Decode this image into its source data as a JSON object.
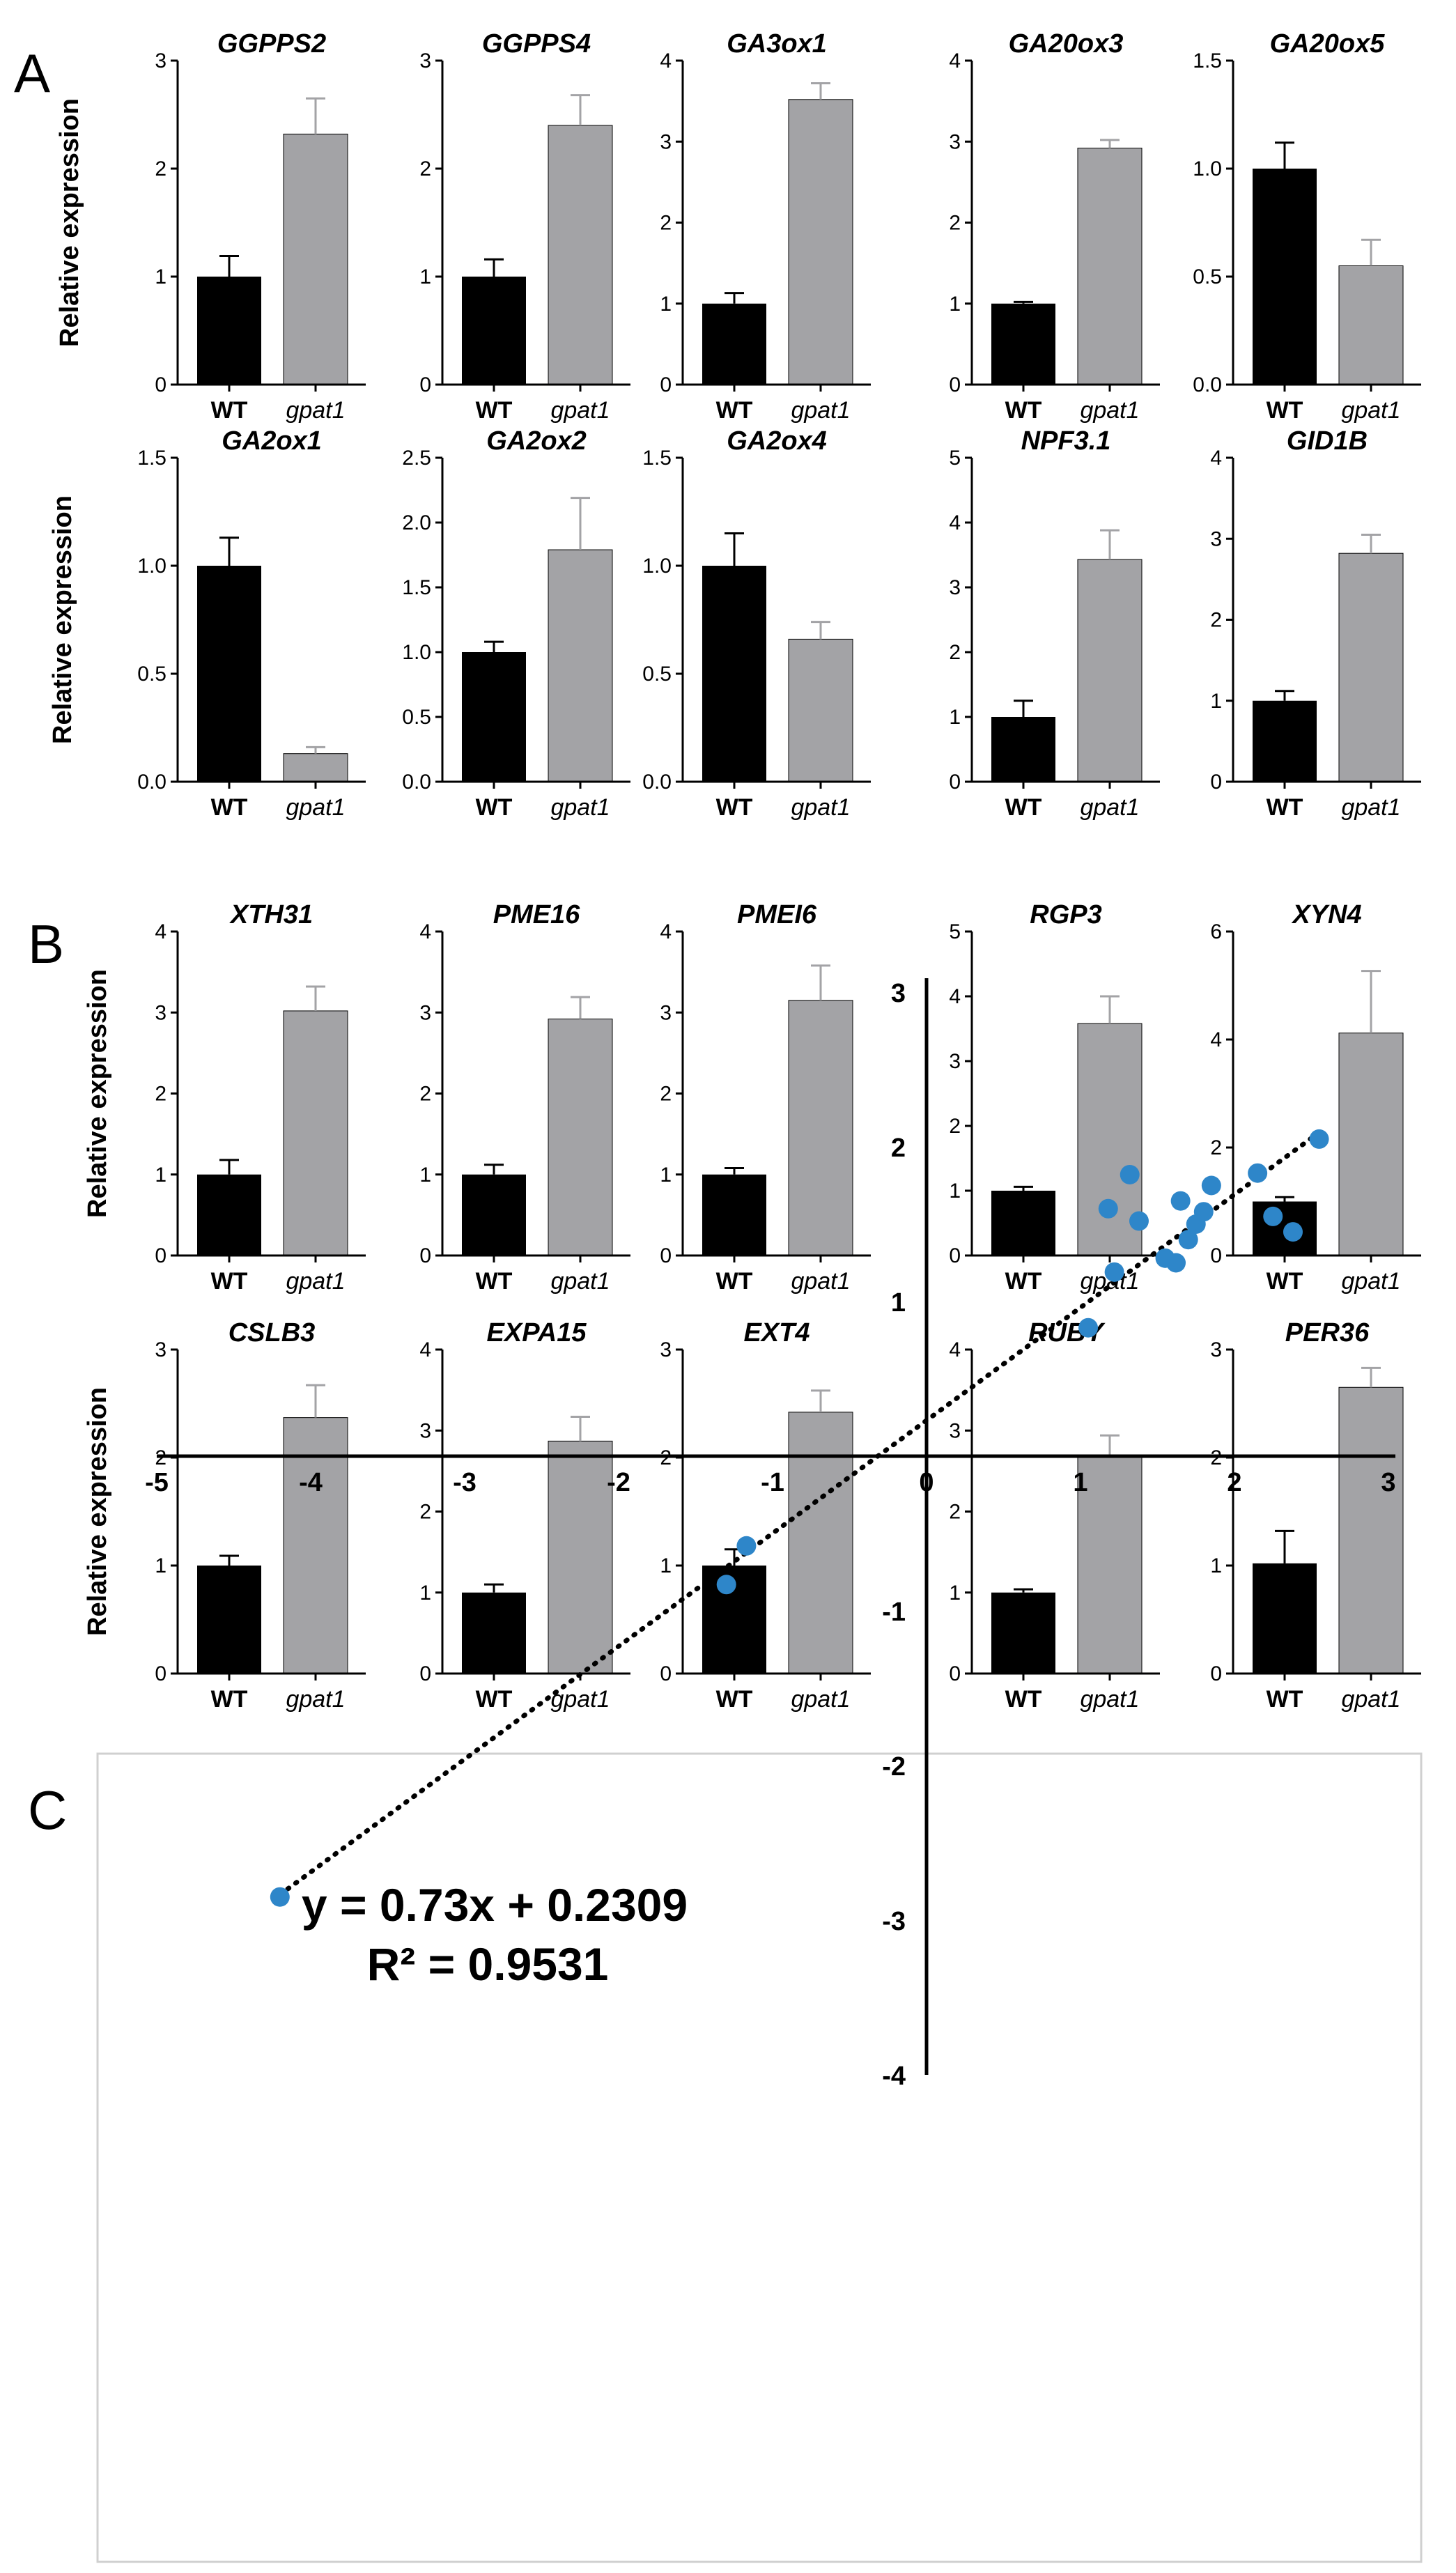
{
  "panels": {
    "a": {
      "letter": "A"
    },
    "b": {
      "letter": "B"
    },
    "c": {
      "letter": "C"
    }
  },
  "chart_data": [
    {
      "panel": "A",
      "type": "bar",
      "ylabel": "Relative expression",
      "categories": [
        "WT",
        "gpat1"
      ],
      "charts": [
        {
          "title": "GGPPS2",
          "values": [
            1.0,
            2.32
          ],
          "errors": [
            0.19,
            0.33
          ],
          "ylim": [
            0,
            3
          ],
          "yticks": [
            "0",
            "1",
            "2",
            "3"
          ]
        },
        {
          "title": "GGPPS4",
          "values": [
            1.0,
            2.4
          ],
          "errors": [
            0.16,
            0.28
          ],
          "ylim": [
            0,
            3
          ],
          "yticks": [
            "0",
            "1",
            "2",
            "3"
          ]
        },
        {
          "title": "GA3ox1",
          "values": [
            1.0,
            3.52
          ],
          "errors": [
            0.13,
            0.2
          ],
          "ylim": [
            0,
            4
          ],
          "yticks": [
            "0",
            "1",
            "2",
            "3",
            "4"
          ]
        },
        {
          "title": "GA20ox3",
          "values": [
            1.0,
            2.92
          ],
          "errors": [
            0.02,
            0.1
          ],
          "ylim": [
            0,
            4
          ],
          "yticks": [
            "0",
            "1",
            "2",
            "3",
            "4"
          ]
        },
        {
          "title": "GA20ox5",
          "values": [
            1.0,
            0.55
          ],
          "errors": [
            0.12,
            0.12
          ],
          "ylim": [
            0,
            1.5
          ],
          "yticks": [
            "0.0",
            "0.5",
            "1.0",
            "1.5"
          ]
        },
        {
          "title": "GA2ox1",
          "values": [
            1.0,
            0.13
          ],
          "errors": [
            0.13,
            0.03
          ],
          "ylim": [
            0,
            1.5
          ],
          "yticks": [
            "0.0",
            "0.5",
            "1.0",
            "1.5"
          ]
        },
        {
          "title": "GA2ox2",
          "values": [
            1.0,
            1.79
          ],
          "errors": [
            0.08,
            0.4
          ],
          "ylim": [
            0,
            2.5
          ],
          "yticks": [
            "0.0",
            "0.5",
            "1.0",
            "1.5",
            "2.0",
            "2.5"
          ]
        },
        {
          "title": "GA2ox4",
          "values": [
            1.0,
            0.66
          ],
          "errors": [
            0.15,
            0.08
          ],
          "ylim": [
            0,
            1.5
          ],
          "yticks": [
            "0.0",
            "0.5",
            "1.0",
            "1.5"
          ]
        },
        {
          "title": "NPF3.1",
          "values": [
            1.0,
            3.43
          ],
          "errors": [
            0.25,
            0.45
          ],
          "ylim": [
            0,
            5
          ],
          "yticks": [
            "0",
            "1",
            "2",
            "3",
            "4",
            "5"
          ]
        },
        {
          "title": "GID1B",
          "values": [
            1.0,
            2.82
          ],
          "errors": [
            0.12,
            0.23
          ],
          "ylim": [
            0,
            4
          ],
          "yticks": [
            "0",
            "1",
            "2",
            "3",
            "4"
          ]
        }
      ]
    },
    {
      "panel": "B",
      "type": "bar",
      "ylabel": "Relative expression",
      "categories": [
        "WT",
        "gpat1"
      ],
      "charts": [
        {
          "title": "XTH31",
          "values": [
            1.0,
            3.02
          ],
          "errors": [
            0.18,
            0.3
          ],
          "ylim": [
            0,
            4
          ],
          "yticks": [
            "0",
            "1",
            "2",
            "3",
            "4"
          ]
        },
        {
          "title": "PME16",
          "values": [
            1.0,
            2.92
          ],
          "errors": [
            0.12,
            0.27
          ],
          "ylim": [
            0,
            4
          ],
          "yticks": [
            "0",
            "1",
            "2",
            "3",
            "4"
          ]
        },
        {
          "title": "PMEI6",
          "values": [
            1.0,
            3.15
          ],
          "errors": [
            0.08,
            0.43
          ],
          "ylim": [
            0,
            4
          ],
          "yticks": [
            "0",
            "1",
            "2",
            "3",
            "4"
          ]
        },
        {
          "title": "RGP3",
          "values": [
            1.0,
            3.58
          ],
          "errors": [
            0.06,
            0.42
          ],
          "ylim": [
            0,
            5
          ],
          "yticks": [
            "0",
            "1",
            "2",
            "3",
            "4",
            "5"
          ]
        },
        {
          "title": "XYN4",
          "values": [
            1.0,
            4.12
          ],
          "errors": [
            0.08,
            1.15
          ],
          "ylim": [
            0,
            6
          ],
          "yticks": [
            "0",
            "2",
            "4",
            "6"
          ]
        },
        {
          "title": "CSLB3",
          "values": [
            1.0,
            2.37
          ],
          "errors": [
            0.09,
            0.3
          ],
          "ylim": [
            0,
            3
          ],
          "yticks": [
            "0",
            "1",
            "2",
            "3"
          ]
        },
        {
          "title": "EXPA15",
          "values": [
            1.0,
            2.87
          ],
          "errors": [
            0.1,
            0.3
          ],
          "ylim": [
            0,
            4
          ],
          "yticks": [
            "0",
            "1",
            "2",
            "3",
            "4"
          ]
        },
        {
          "title": "EXT4",
          "values": [
            1.0,
            2.42
          ],
          "errors": [
            0.15,
            0.2
          ],
          "ylim": [
            0,
            3
          ],
          "yticks": [
            "0",
            "1",
            "2",
            "3"
          ]
        },
        {
          "title": "RUBY",
          "values": [
            1.0,
            2.7
          ],
          "errors": [
            0.04,
            0.24
          ],
          "ylim": [
            0,
            4
          ],
          "yticks": [
            "0",
            "1",
            "2",
            "3",
            "4"
          ]
        },
        {
          "title": "PER36",
          "values": [
            1.02,
            2.65
          ],
          "errors": [
            0.3,
            0.18
          ],
          "ylim": [
            0,
            3
          ],
          "yticks": [
            "0",
            "1",
            "2",
            "3"
          ]
        }
      ]
    },
    {
      "panel": "C",
      "type": "scatter",
      "equation": "y = 0.73x + 0.2309",
      "r_squared": "R² = 0.9531",
      "xlim": [
        -5,
        3
      ],
      "ylim": [
        -4,
        3
      ],
      "xticks": [
        "-5",
        "-4",
        "-3",
        "-2",
        "-1",
        "0",
        "1",
        "2",
        "3"
      ],
      "yticks": [
        "-4",
        "-3",
        "-2",
        "-1",
        "0",
        "1",
        "2",
        "3"
      ],
      "trendline": {
        "slope": 0.73,
        "intercept": 0.2309,
        "x_range": [
          -4.2,
          2.55
        ]
      },
      "points": [
        [
          -4.2,
          -2.85
        ],
        [
          -1.3,
          -0.83
        ],
        [
          -1.17,
          -0.58
        ],
        [
          1.05,
          0.83
        ],
        [
          1.18,
          1.6
        ],
        [
          1.22,
          1.19
        ],
        [
          1.32,
          1.82
        ],
        [
          1.38,
          1.52
        ],
        [
          1.55,
          1.28
        ],
        [
          1.62,
          1.25
        ],
        [
          1.65,
          1.65
        ],
        [
          1.7,
          1.4
        ],
        [
          1.75,
          1.5
        ],
        [
          1.8,
          1.58
        ],
        [
          1.85,
          1.75
        ],
        [
          2.15,
          1.83
        ],
        [
          2.25,
          1.55
        ],
        [
          2.38,
          1.45
        ],
        [
          2.55,
          2.05
        ]
      ]
    }
  ]
}
